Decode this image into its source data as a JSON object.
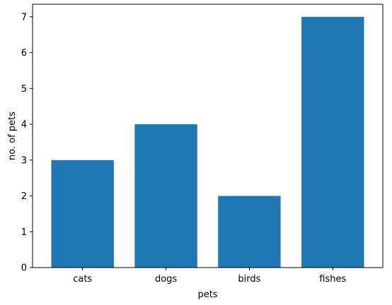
{
  "chart_data": {
    "type": "bar",
    "title": "",
    "xlabel": "pets",
    "ylabel": "no. of pets",
    "categories": [
      "cats",
      "dogs",
      "birds",
      "fishes"
    ],
    "values": [
      3,
      4,
      2,
      7
    ],
    "ylim": [
      0,
      7.35
    ],
    "yticks": [
      "0",
      "1",
      "2",
      "3",
      "4",
      "5",
      "6",
      "7"
    ],
    "bar_color": "#1f77b4",
    "grid": false,
    "legend": "none"
  }
}
